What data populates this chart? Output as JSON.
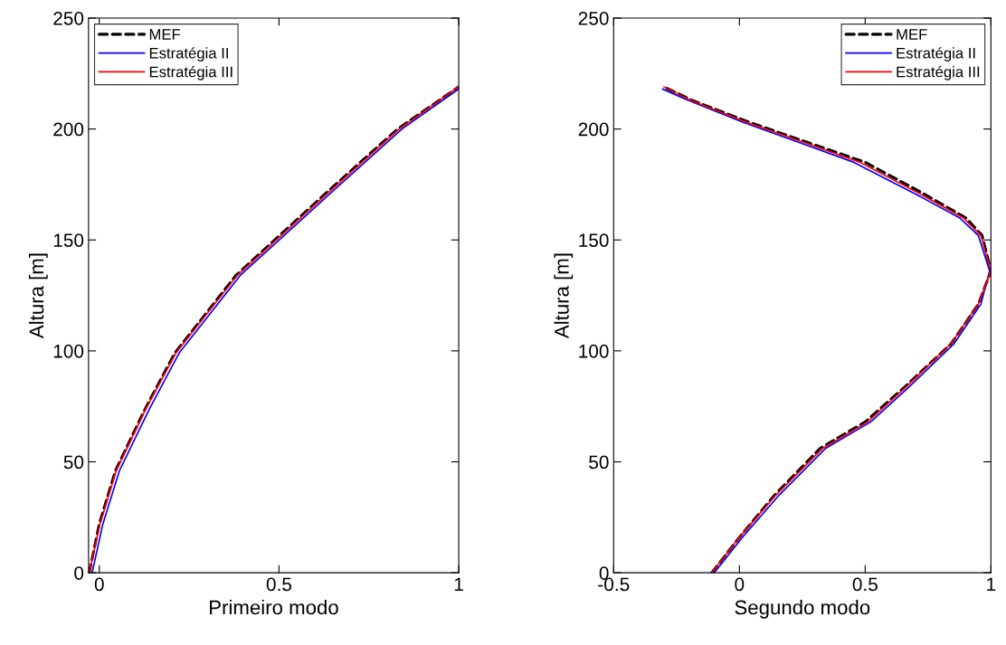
{
  "chart_data": [
    {
      "type": "line",
      "xlabel": "Primeiro modo",
      "ylabel": "Altura [m]",
      "xlim": [
        -0.03,
        1
      ],
      "xticks": [
        0,
        0.5,
        1
      ],
      "ylim": [
        0,
        250
      ],
      "yticks": [
        0,
        50,
        100,
        150,
        200,
        250
      ],
      "legend": "top left",
      "grid": false,
      "series": [
        {
          "name": "MEF",
          "color": "#000000",
          "line_style": "dashed",
          "x": [
            -0.028,
            0.0,
            0.045,
            0.128,
            0.21,
            0.38,
            0.63,
            0.83,
            1.0
          ],
          "values": [
            0,
            22,
            46,
            74,
            99,
            134,
            171,
            200,
            219
          ]
        },
        {
          "name": "Estratégia II",
          "color": "#0000ff",
          "line_style": "solid",
          "x": [
            -0.02,
            0.01,
            0.056,
            0.14,
            0.222,
            0.392,
            0.643,
            0.842,
            1.0
          ],
          "values": [
            0,
            22,
            46,
            74,
            99,
            134,
            171,
            200,
            218
          ]
        },
        {
          "name": "Estratégia III",
          "color": "#ff0000",
          "line_style": "solid",
          "x": [
            -0.028,
            0.002,
            0.047,
            0.13,
            0.213,
            0.384,
            0.635,
            0.834,
            1.0
          ],
          "values": [
            0,
            22,
            46,
            74,
            99,
            134,
            171,
            200,
            219
          ]
        }
      ]
    },
    {
      "type": "line",
      "xlabel": "Segundo modo",
      "ylabel": "Altura [m]",
      "xlim": [
        -0.5,
        1
      ],
      "xticks": [
        -0.5,
        0,
        0.5,
        1
      ],
      "ylim": [
        0,
        250
      ],
      "yticks": [
        0,
        50,
        100,
        150,
        200,
        250
      ],
      "legend": "top right",
      "grid": false,
      "series": [
        {
          "name": "MEF",
          "color": "#000000",
          "line_style": "dashed",
          "x": [
            -0.11,
            0.0,
            0.14,
            0.32,
            0.5,
            0.66,
            0.84,
            0.95,
            1.0,
            0.965,
            0.9,
            0.73,
            0.5,
            0.27,
            0.04,
            -0.19,
            -0.3
          ],
          "values": [
            0,
            16,
            35,
            56,
            68,
            84,
            103,
            121,
            136,
            152,
            160,
            171,
            185,
            194,
            203,
            213,
            219
          ]
        },
        {
          "name": "Estratégia II",
          "color": "#0000ff",
          "line_style": "solid",
          "x": [
            -0.1,
            0.012,
            0.158,
            0.342,
            0.522,
            0.677,
            0.852,
            0.96,
            0.995,
            0.95,
            0.875,
            0.695,
            0.455,
            0.235,
            0.015,
            -0.205,
            -0.305
          ],
          "values": [
            0,
            16,
            35,
            56,
            68,
            84,
            103,
            121,
            136,
            152,
            160,
            171,
            185,
            194,
            203,
            213,
            218
          ]
        },
        {
          "name": "Estratégia III",
          "color": "#ff0000",
          "line_style": "solid",
          "x": [
            -0.11,
            0.0,
            0.145,
            0.33,
            0.51,
            0.665,
            0.84,
            0.95,
            1.0,
            0.96,
            0.89,
            0.715,
            0.48,
            0.255,
            0.03,
            -0.195,
            -0.3
          ],
          "values": [
            0,
            16,
            35,
            56,
            68,
            84,
            103,
            121,
            136,
            152,
            160,
            171,
            185,
            194,
            203,
            213,
            219
          ]
        }
      ]
    }
  ]
}
